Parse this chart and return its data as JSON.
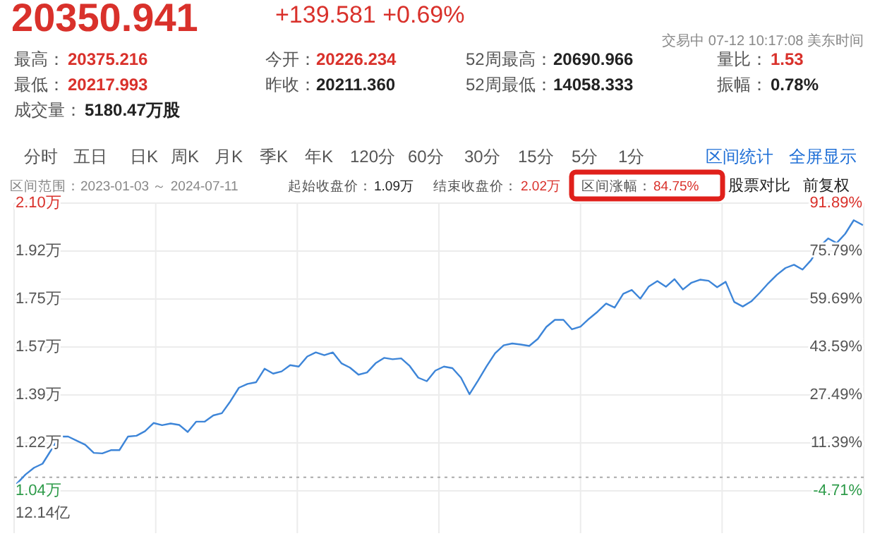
{
  "chart_data": {
    "type": "line",
    "title": "20350.941",
    "annotations": [
      "+139.581 +0.69%",
      "交易中 07-12 10:17:08 美东时间",
      "最高：",
      "20375.216",
      "今开：",
      "20226.234",
      "52周最高：",
      "20690.966",
      "量比：",
      "1.53",
      "最低：",
      "20217.993",
      "昨收：",
      "20211.360",
      "52周最低：",
      "14058.333",
      "振幅：",
      "0.78%",
      "成交量：",
      "5180.47万股",
      "分时",
      "五日",
      "日K",
      "周K",
      "月K",
      "季K",
      "年K",
      "120分",
      "60分",
      "30分",
      "15分",
      "5分",
      "1分",
      "区间统计",
      "全屏显示",
      "区间范围：2023-01-03 ～ 2024-07-11",
      "起始收盘价：",
      "1.09万",
      "结束收盘价：",
      "2.02万",
      "区间涨幅：",
      "84.75%",
      "股票对比",
      "前复权",
      "12.14亿"
    ],
    "categories": [
      null,
      null,
      null,
      null,
      null,
      null,
      null,
      null,
      null,
      null,
      null,
      null,
      null,
      null,
      null,
      null,
      null,
      null,
      null,
      null,
      null,
      null,
      null,
      null,
      null,
      null,
      null,
      null,
      null,
      null,
      null,
      null,
      null,
      null,
      null,
      null,
      null,
      null,
      null,
      null,
      null,
      null,
      null,
      null,
      null,
      null,
      null,
      null,
      null,
      null,
      null,
      null,
      null,
      null,
      null,
      null,
      null,
      null,
      null,
      null,
      null,
      null,
      null,
      null,
      null,
      null,
      null,
      null,
      null,
      null,
      null,
      null,
      null,
      null,
      null,
      null,
      null,
      null,
      null,
      null,
      null,
      null,
      null,
      null,
      null,
      null,
      null,
      null,
      null,
      null,
      null,
      null,
      null,
      null,
      null,
      null,
      null,
      null,
      null,
      null
    ],
    "ylim": [
      1.04,
      2.1
    ],
    "yticks": [
      {
        "value": 2.1,
        "label": "2.10万"
      },
      {
        "value": 1.9233,
        "label": "1.92万"
      },
      {
        "value": 1.7467,
        "label": "1.75万"
      },
      {
        "value": 1.57,
        "label": "1.57万"
      },
      {
        "value": 1.3933,
        "label": "1.39万"
      },
      {
        "value": 1.2167,
        "label": "1.22万"
      },
      {
        "value": 1.04,
        "label": "1.04万"
      }
    ],
    "y2lim": [
      -4.71,
      91.89
    ],
    "y2ticks": [
      {
        "value": 91.89,
        "label": "91.89%"
      },
      {
        "value": 75.79,
        "label": "75.79%"
      },
      {
        "value": 59.69,
        "label": "59.69%"
      },
      {
        "value": 43.59,
        "label": "43.59%"
      },
      {
        "value": 27.49,
        "label": "27.49%"
      },
      {
        "value": 11.39,
        "label": "11.39%"
      },
      {
        "value": -4.71,
        "label": "-4.71%"
      }
    ],
    "grid": true,
    "ref_lines": [
      {
        "axis": "y",
        "value": 1.09,
        "color": "#aaaaaa",
        "line_style": "dotted"
      }
    ],
    "series": [
      {
        "color": "#3d85d8",
        "values": [
          1.067,
          1.1,
          1.125,
          1.14,
          1.19,
          1.24,
          1.24,
          1.225,
          1.21,
          1.18,
          1.178,
          1.19,
          1.19,
          1.24,
          1.243,
          1.26,
          1.29,
          1.282,
          1.288,
          1.283,
          1.257,
          1.295,
          1.295,
          1.318,
          1.326,
          1.37,
          1.42,
          1.434,
          1.44,
          1.49,
          1.472,
          1.48,
          1.503,
          1.498,
          1.535,
          1.55,
          1.54,
          1.55,
          1.51,
          1.494,
          1.468,
          1.476,
          1.51,
          1.53,
          1.525,
          1.528,
          1.5,
          1.457,
          1.444,
          1.483,
          1.498,
          1.492,
          1.457,
          1.396,
          1.446,
          1.499,
          1.547,
          1.576,
          1.583,
          1.579,
          1.574,
          1.6,
          1.644,
          1.67,
          1.67,
          1.635,
          1.645,
          1.674,
          1.7,
          1.73,
          1.715,
          1.766,
          1.78,
          1.748,
          1.793,
          1.813,
          1.792,
          1.82,
          1.782,
          1.807,
          1.818,
          1.814,
          1.79,
          1.81,
          1.736,
          1.719,
          1.738,
          1.77,
          1.805,
          1.836,
          1.861,
          1.873,
          1.855,
          1.89,
          1.94,
          1.97,
          1.953,
          1.987,
          2.037,
          2.02
        ]
      }
    ]
  }
}
